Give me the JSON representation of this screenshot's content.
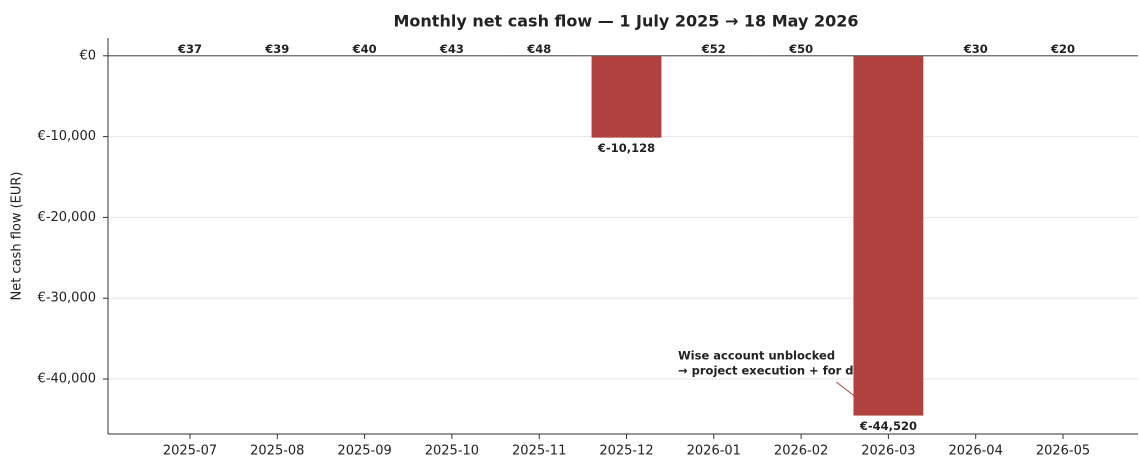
{
  "chart_data": {
    "type": "bar",
    "title": "Monthly net cash flow — 1 July 2025 → 18 May 2026",
    "y_label": "Net cash flow (EUR)",
    "categories": [
      "2025-07",
      "2025-08",
      "2025-09",
      "2025-10",
      "2025-11",
      "2025-12",
      "2026-01",
      "2026-02",
      "2026-03",
      "2026-04",
      "2026-05"
    ],
    "values": [
      37,
      39,
      40,
      43,
      48,
      -10128,
      52,
      50,
      -44520,
      30,
      20
    ],
    "value_labels": [
      "€37",
      "€39",
      "€40",
      "€43",
      "€48",
      "€-10,128",
      "€52",
      "€50",
      "€-44,520",
      "€30",
      "€20"
    ],
    "color_positive": "#2e7d32",
    "color_negative": "#b0413e",
    "ylim": [
      -46800,
      2200
    ],
    "yticks": [
      {
        "value": -40000,
        "label": "€-40,000"
      },
      {
        "value": -30000,
        "label": "€-30,000"
      },
      {
        "value": -20000,
        "label": "€-20,000"
      },
      {
        "value": -10000,
        "label": "€-10,000"
      },
      {
        "value": 0,
        "label": "€0"
      }
    ],
    "grid": true,
    "annotation": {
      "lines": [
        "Wise account unblocked",
        "→ project execution + for donations"
      ],
      "category_index": 8
    }
  }
}
